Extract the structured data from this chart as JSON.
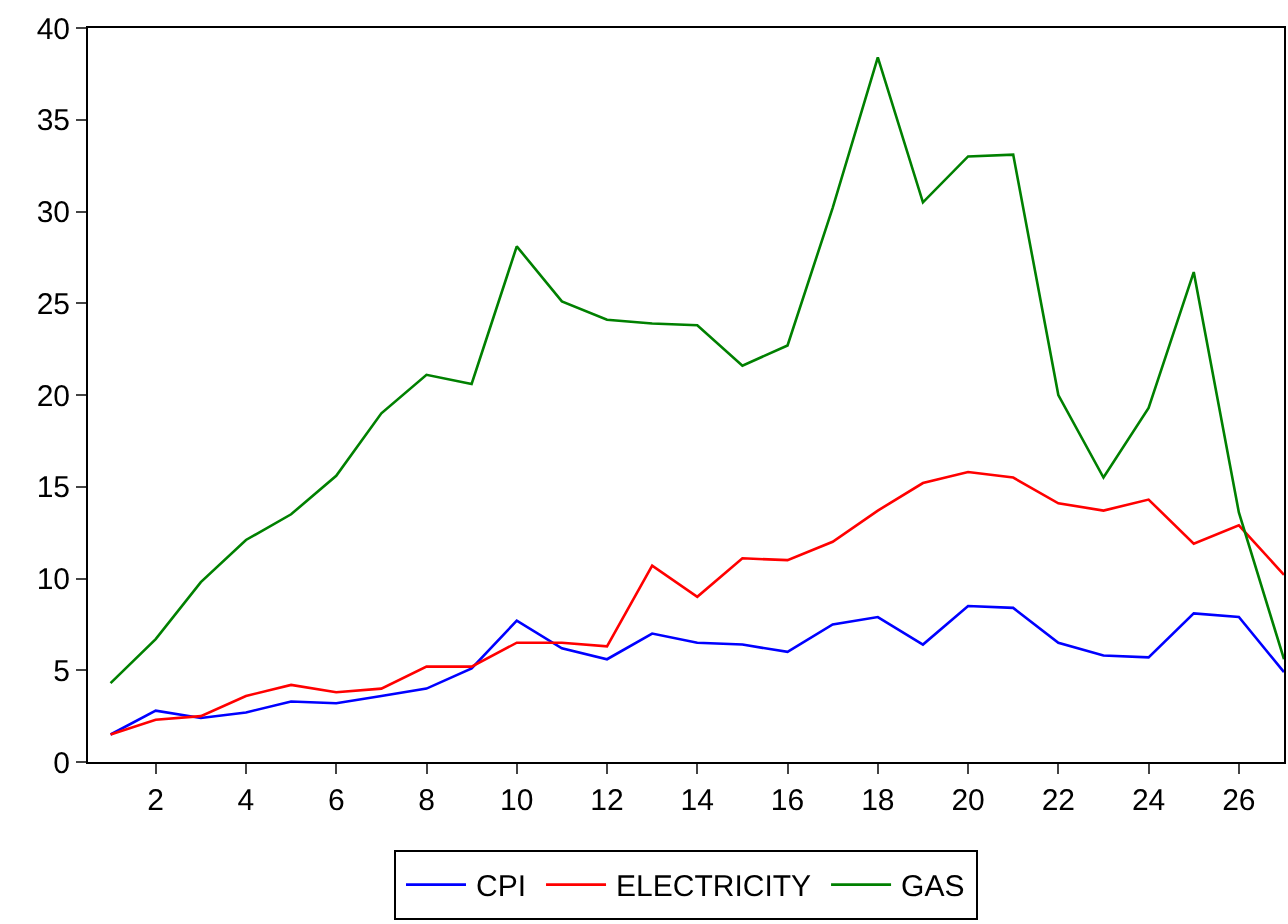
{
  "chart_data": {
    "type": "line",
    "x": [
      1,
      2,
      3,
      4,
      5,
      6,
      7,
      8,
      9,
      10,
      11,
      12,
      13,
      14,
      15,
      16,
      17,
      18,
      19,
      20,
      21,
      22,
      23,
      24,
      25,
      26,
      27
    ],
    "series": [
      {
        "name": "CPI",
        "color": "#0000ff",
        "values": [
          1.5,
          2.8,
          2.4,
          2.7,
          3.3,
          3.2,
          3.6,
          4.0,
          5.1,
          7.7,
          6.2,
          5.6,
          7.0,
          6.5,
          6.4,
          6.0,
          7.5,
          7.9,
          6.4,
          8.5,
          8.4,
          6.5,
          5.8,
          5.7,
          8.1,
          7.9,
          4.9
        ]
      },
      {
        "name": "ELECTRICITY",
        "color": "#ff0000",
        "values": [
          1.5,
          2.3,
          2.5,
          3.6,
          4.2,
          3.8,
          4.0,
          5.2,
          5.2,
          6.5,
          6.5,
          6.3,
          10.7,
          9.0,
          11.1,
          11.0,
          12.0,
          13.7,
          15.2,
          15.8,
          15.5,
          14.1,
          13.7,
          14.3,
          11.9,
          12.9,
          10.2
        ]
      },
      {
        "name": "GAS",
        "color": "#008000",
        "values": [
          4.3,
          6.7,
          9.8,
          12.1,
          13.5,
          15.6,
          19.0,
          21.1,
          20.6,
          28.1,
          25.1,
          24.1,
          23.9,
          23.8,
          21.6,
          22.7,
          30.2,
          38.4,
          30.5,
          33.0,
          33.1,
          20.0,
          15.5,
          19.3,
          26.7,
          13.6,
          5.6
        ]
      }
    ],
    "xlim": [
      0.5,
      27
    ],
    "xticks": [
      2,
      4,
      6,
      8,
      10,
      12,
      14,
      16,
      18,
      20,
      22,
      24,
      26
    ],
    "ylim": [
      0,
      40
    ],
    "yticks": [
      0,
      5,
      10,
      15,
      20,
      25,
      30,
      35,
      40
    ],
    "legend": "bottom",
    "marker": "none",
    "line_style": "solid"
  }
}
